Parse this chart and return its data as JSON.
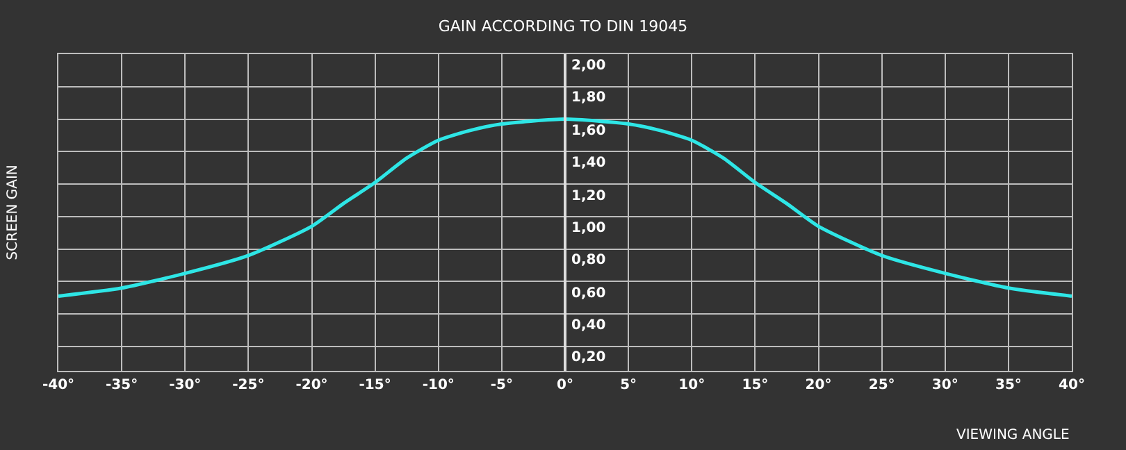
{
  "chart_data": {
    "type": "line",
    "title": "GAIN ACCORDING TO DIN 19045",
    "xlabel": "VIEWING ANGLE",
    "ylabel": "SCREEN GAIN",
    "x": [
      -40,
      -35,
      -30,
      -25,
      -20,
      -17.5,
      -15,
      -12.5,
      -10,
      -7.5,
      -5,
      0,
      5,
      7.5,
      10,
      12.5,
      15,
      17.5,
      20,
      25,
      30,
      35,
      40
    ],
    "series": [
      {
        "color": "#2ee6e6",
        "values": [
          0.51,
          0.56,
          0.65,
          0.76,
          0.94,
          1.08,
          1.21,
          1.36,
          1.47,
          1.53,
          1.57,
          1.6,
          1.57,
          1.53,
          1.47,
          1.36,
          1.21,
          1.08,
          0.94,
          0.76,
          0.65,
          0.56,
          0.51
        ]
      }
    ],
    "xlim": [
      -40,
      40
    ],
    "ylim": [
      0.05,
      2.0
    ],
    "xticks": [
      {
        "value": -40,
        "label": "-40°"
      },
      {
        "value": -35,
        "label": "-35°"
      },
      {
        "value": -30,
        "label": "-30°"
      },
      {
        "value": -25,
        "label": "-25°"
      },
      {
        "value": -20,
        "label": "-20°"
      },
      {
        "value": -15,
        "label": "-15°"
      },
      {
        "value": -10,
        "label": "-10°"
      },
      {
        "value": -5,
        "label": "-5°"
      },
      {
        "value": 0,
        "label": "0°"
      },
      {
        "value": 5,
        "label": "5°"
      },
      {
        "value": 10,
        "label": "10°"
      },
      {
        "value": 15,
        "label": "15°"
      },
      {
        "value": 20,
        "label": "20°"
      },
      {
        "value": 25,
        "label": "25°"
      },
      {
        "value": 30,
        "label": "30°"
      },
      {
        "value": 35,
        "label": "35°"
      },
      {
        "value": 40,
        "label": "40°"
      }
    ],
    "yticks": [
      {
        "value": 0.2,
        "label": "0,20"
      },
      {
        "value": 0.4,
        "label": "0,40"
      },
      {
        "value": 0.6,
        "label": "0,60"
      },
      {
        "value": 0.8,
        "label": "0,80"
      },
      {
        "value": 1.0,
        "label": "1,00"
      },
      {
        "value": 1.2,
        "label": "1,20"
      },
      {
        "value": 1.4,
        "label": "1,40"
      },
      {
        "value": 1.6,
        "label": "1,60"
      },
      {
        "value": 1.8,
        "label": "1,80"
      },
      {
        "value": 2.0,
        "label": "2,00"
      }
    ],
    "grid": true,
    "marker": "none",
    "line_style": "solid"
  }
}
